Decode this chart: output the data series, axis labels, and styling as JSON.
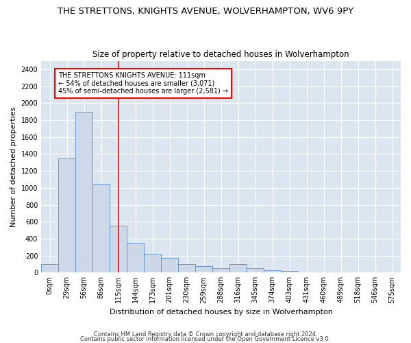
{
  "title1": "THE STRETTONS, KNIGHTS AVENUE, WOLVERHAMPTON, WV6 9PY",
  "title2": "Size of property relative to detached houses in Wolverhampton",
  "xlabel": "Distribution of detached houses by size in Wolverhampton",
  "ylabel": "Number of detached properties",
  "footer1": "Contains HM Land Registry data © Crown copyright and database right 2024.",
  "footer2": "Contains public sector information licensed under the Open Government Licence v3.0.",
  "bin_labels": [
    "0sqm",
    "29sqm",
    "56sqm",
    "86sqm",
    "115sqm",
    "144sqm",
    "173sqm",
    "201sqm",
    "230sqm",
    "259sqm",
    "288sqm",
    "316sqm",
    "345sqm",
    "374sqm",
    "403sqm",
    "431sqm",
    "460sqm",
    "489sqm",
    "518sqm",
    "546sqm",
    "575sqm"
  ],
  "bar_values": [
    100,
    1350,
    1900,
    1050,
    550,
    350,
    220,
    175,
    100,
    75,
    50,
    100,
    50,
    25,
    15,
    5,
    5,
    0,
    3,
    0,
    3
  ],
  "bar_color": "#cdd9e8",
  "bar_edge_color": "#5b8fc7",
  "red_line_index": 4,
  "annotation_line1": "THE STRETTONS KNIGHTS AVENUE: 111sqm",
  "annotation_line2": "← 54% of detached houses are smaller (3,071)",
  "annotation_line3": "45% of semi-detached houses are larger (2,581) →",
  "ylim_max": 2500,
  "yticks": [
    0,
    200,
    400,
    600,
    800,
    1000,
    1200,
    1400,
    1600,
    1800,
    2000,
    2200,
    2400
  ],
  "plot_bg_color": "#dce6f0",
  "grid_color": "#ffffff",
  "title1_fontsize": 9.5,
  "title2_fontsize": 8.5,
  "tick_fontsize": 7,
  "ylabel_fontsize": 8,
  "xlabel_fontsize": 8,
  "footer_fontsize": 6,
  "annot_fontsize": 7
}
